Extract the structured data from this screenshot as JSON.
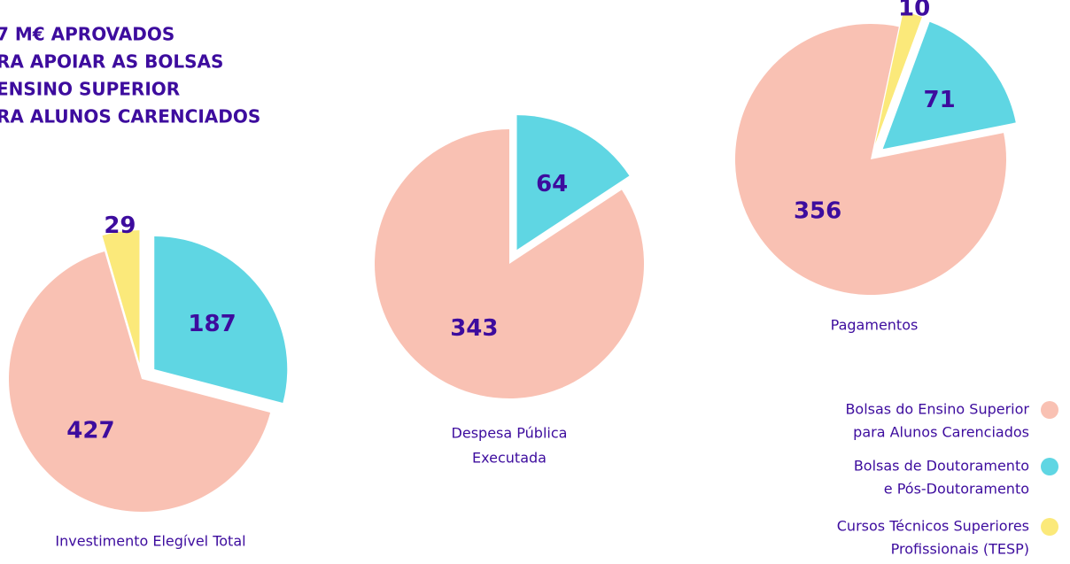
{
  "title_lines": [
    "7 M€ APROVADOS",
    "RA APOIAR AS BOLSAS",
    "ENSINO SUPERIOR",
    "RA ALUNOS CARENCIADOS"
  ],
  "legend": {
    "items": [
      {
        "lines": [
          "Bolsas do Ensino Superior",
          "para Alunos Carenciados"
        ],
        "color": "#f9c1b3"
      },
      {
        "lines": [
          "Bolsas de Doutoramento",
          "e Pós-Doutoramento"
        ],
        "color": "#5fd6e3"
      },
      {
        "lines": [
          "Cursos Técnicos Superiores",
          "Profissionais (TESP)"
        ],
        "color": "#fbe97a"
      }
    ]
  },
  "chart_data": [
    {
      "type": "pie",
      "label": [
        "Investimento Elegível Total"
      ],
      "values": [
        427,
        187,
        29
      ]
    },
    {
      "type": "pie",
      "label": [
        "Despesa Pública",
        "Executada"
      ],
      "values": [
        343,
        64
      ]
    },
    {
      "type": "pie",
      "label": [
        "Pagamentos"
      ],
      "values": [
        356,
        71,
        10
      ]
    }
  ]
}
